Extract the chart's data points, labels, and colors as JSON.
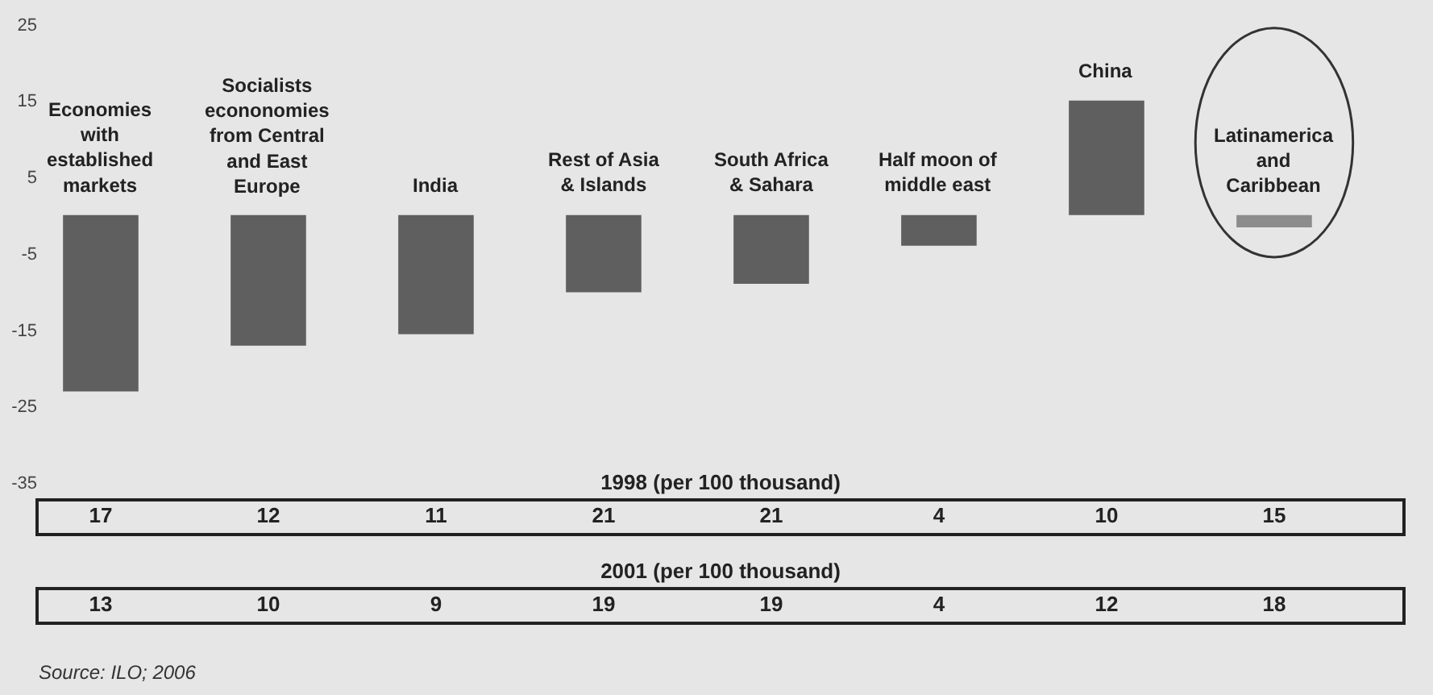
{
  "chart_data": [
    {
      "type": "bar",
      "categories": [
        "Economies with established markets",
        "Socialists econonomies from Central and East Europe",
        "India",
        "Rest of Asia & Islands",
        "South Africa & Sahara",
        "Half moon of middle east",
        "China",
        "Latinamerica and Caribbean"
      ],
      "values": [
        -23.1,
        -17.1,
        -15.6,
        -10.1,
        -9.0,
        -4.0,
        15.0,
        -1.6
      ],
      "colors": [
        "#5f5f5f",
        "#5f5f5f",
        "#5f5f5f",
        "#5f5f5f",
        "#5f5f5f",
        "#5f5f5f",
        "#5f5f5f",
        "#8c8c8c"
      ],
      "ylim": [
        -35,
        25
      ],
      "yticks": [
        -35,
        -25,
        -15,
        -5,
        5,
        15,
        25
      ],
      "annotations": [
        "Source: ILO; 2006"
      ]
    },
    {
      "type": "other",
      "title": "1998 (per 100 thousand)",
      "categories": [
        null,
        null,
        null,
        null,
        null,
        null,
        null,
        null
      ],
      "values": [
        17,
        12,
        11,
        21,
        21,
        4,
        10,
        15
      ],
      "data_labels": true
    },
    {
      "type": "other",
      "title": "2001 (per 100 thousand)",
      "categories": [
        null,
        null,
        null,
        null,
        null,
        null,
        null,
        null
      ],
      "values": [
        13,
        10,
        9,
        19,
        19,
        4,
        12,
        18
      ],
      "data_labels": true
    }
  ]
}
